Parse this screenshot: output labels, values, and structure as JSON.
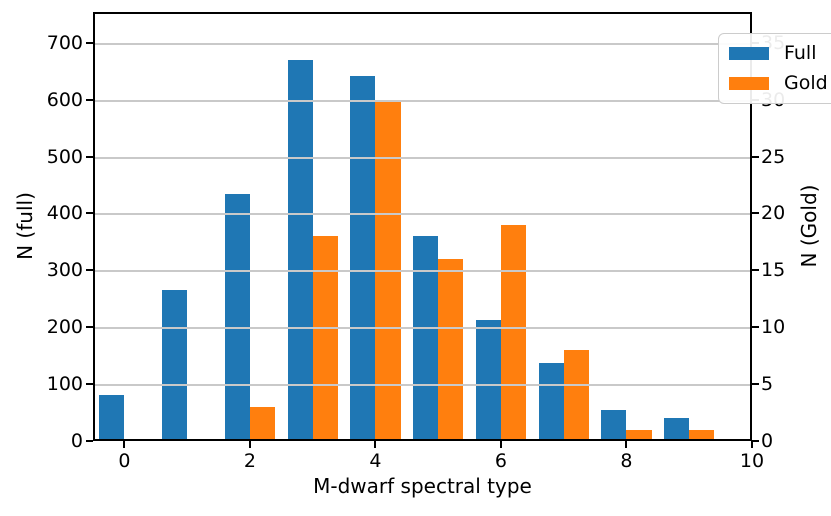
{
  "chart_data": {
    "type": "bar",
    "title": "",
    "xlabel": "M-dwarf spectral type",
    "ylabel_left": "N (full)",
    "ylabel_right": "N (Gold)",
    "categories": [
      0,
      1,
      2,
      3,
      4,
      5,
      6,
      7,
      8,
      9
    ],
    "series": [
      {
        "name": "Full",
        "axis": "left",
        "color": "#1f77b4",
        "offset": -0.4,
        "values": [
          80,
          266,
          435,
          669,
          641,
          361,
          213,
          137,
          55,
          40
        ]
      },
      {
        "name": "Gold",
        "axis": "right",
        "color": "#ff7f0e",
        "offset": 0,
        "values": [
          0,
          0,
          3,
          18,
          30,
          16,
          19,
          8,
          1,
          1
        ]
      }
    ],
    "bar_width": 0.4,
    "xlim": [
      -0.5,
      10
    ],
    "ylim_left": [
      0,
      754
    ],
    "ylim_right": [
      0,
      37.7
    ],
    "xticks": [
      0,
      2,
      4,
      6,
      8,
      10
    ],
    "yticks_left": [
      0,
      100,
      200,
      300,
      400,
      500,
      600,
      700
    ],
    "yticks_right": [
      0,
      5,
      10,
      15,
      20,
      25,
      30,
      35
    ],
    "grid": "horizontal-above-bars",
    "legend_position": "upper-right",
    "axes_relation": "left = 20 x right"
  },
  "colors": {
    "full_series": "#1f77b4",
    "gold_series": "#ff7f0e",
    "gridline": "#c9c9c9",
    "spine": "#000000",
    "background": "#ffffff"
  }
}
